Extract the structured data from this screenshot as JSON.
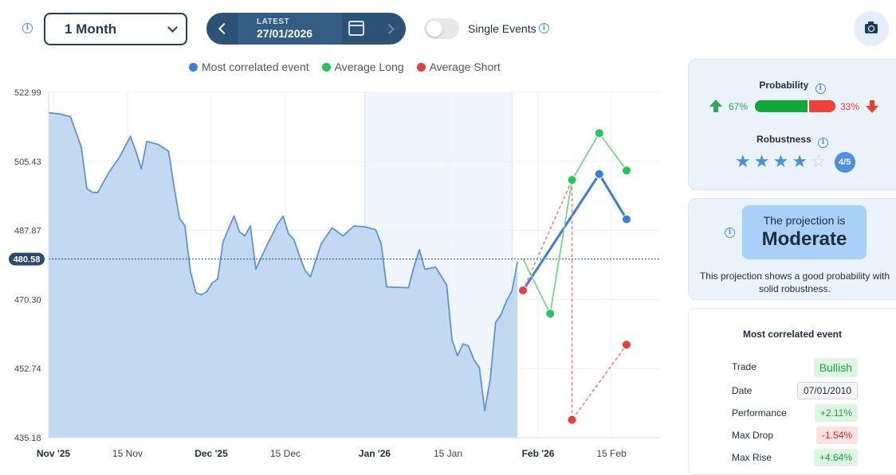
{
  "toolbar": {
    "period": "1 Month",
    "latest_label": "LATEST",
    "latest_date": "27/01/2026",
    "single_events_label": "Single Events",
    "single_events_on": false
  },
  "legend": [
    {
      "label": "Most correlated event",
      "color": "#3b7ddd"
    },
    {
      "label": "Average Long",
      "color": "#22c55e"
    },
    {
      "label": "Average Short",
      "color": "#e53e3e"
    }
  ],
  "chart_data": {
    "type": "line",
    "ylim": [
      435.18,
      522.99
    ],
    "y_ticks": [
      "522.99",
      "505.43",
      "487.87",
      "470.30",
      "452.74",
      "435.18"
    ],
    "x_ticks": [
      {
        "label": "Nov '25",
        "bold": true
      },
      {
        "label": "15 Nov",
        "bold": false
      },
      {
        "label": "Dec '25",
        "bold": true
      },
      {
        "label": "15 Dec",
        "bold": false
      },
      {
        "label": "Jan '26",
        "bold": true
      },
      {
        "label": "15 Jan",
        "bold": false
      },
      {
        "label": "Feb '26",
        "bold": true
      },
      {
        "label": "15 Feb",
        "bold": false
      }
    ],
    "current_value": "480.58",
    "history_x_range": [
      0,
      87
    ],
    "projection_x_range": [
      87,
      112
    ],
    "highlight_range": [
      58,
      85
    ],
    "history": [
      [
        0,
        517.8
      ],
      [
        2,
        517.5
      ],
      [
        4,
        516.8
      ],
      [
        6,
        509.0
      ],
      [
        7,
        498.5
      ],
      [
        8,
        497.6
      ],
      [
        9,
        497.5
      ],
      [
        11,
        502.5
      ],
      [
        13,
        506.5
      ],
      [
        15,
        511.8
      ],
      [
        16,
        508.0
      ],
      [
        17,
        503.5
      ],
      [
        18,
        510.5
      ],
      [
        20,
        509.8
      ],
      [
        22,
        508.0
      ],
      [
        23,
        499.0
      ],
      [
        24,
        491.0
      ],
      [
        25,
        489.0
      ],
      [
        26,
        477.5
      ],
      [
        27,
        472.0
      ],
      [
        28,
        471.5
      ],
      [
        29,
        472.3
      ],
      [
        30,
        474.5
      ],
      [
        31,
        475.5
      ],
      [
        32,
        485.0
      ],
      [
        34,
        491.5
      ],
      [
        35,
        487.5
      ],
      [
        36,
        486.5
      ],
      [
        37,
        489.0
      ],
      [
        38,
        478.0
      ],
      [
        40,
        484.0
      ],
      [
        42,
        489.5
      ],
      [
        43,
        491.5
      ],
      [
        44,
        487.0
      ],
      [
        45,
        485.5
      ],
      [
        46,
        481.5
      ],
      [
        47,
        477.8
      ],
      [
        48,
        476.0
      ],
      [
        50,
        484.5
      ],
      [
        52,
        488.5
      ],
      [
        54,
        486.5
      ],
      [
        56,
        489.0
      ],
      [
        58,
        488.8
      ],
      [
        60,
        488.0
      ],
      [
        61,
        484.5
      ],
      [
        62,
        473.5
      ],
      [
        64,
        473.4
      ],
      [
        66,
        473.3
      ],
      [
        67,
        478.5
      ],
      [
        68,
        483.0
      ],
      [
        69,
        478.0
      ],
      [
        71,
        478.5
      ],
      [
        73,
        474.0
      ],
      [
        74,
        460.0
      ],
      [
        75,
        456.0
      ],
      [
        76,
        459.0
      ],
      [
        77,
        458.5
      ],
      [
        78,
        455.0
      ],
      [
        79,
        453.0
      ],
      [
        80,
        442.0
      ],
      [
        81,
        450.0
      ],
      [
        82,
        464.5
      ],
      [
        83,
        466.5
      ],
      [
        84,
        470.0
      ],
      [
        85,
        472.5
      ],
      [
        86,
        480.0
      ]
    ],
    "series": [
      {
        "name": "Most correlated event",
        "color": "#3b7ddd",
        "points": [
          [
            87,
            472.6
          ],
          [
            101,
            502.2
          ],
          [
            106,
            490.7
          ]
        ]
      },
      {
        "name": "Average Long",
        "color": "#22c55e",
        "points": [
          [
            87,
            480.6
          ],
          [
            92,
            466.7
          ],
          [
            96,
            500.7
          ],
          [
            101,
            512.6
          ],
          [
            106,
            503.1
          ]
        ]
      },
      {
        "name": "Average Short",
        "color": "#e53e3e",
        "points": [
          [
            87,
            472.6
          ],
          [
            96,
            500.7
          ],
          [
            96,
            439.7
          ],
          [
            106,
            458.8
          ]
        ]
      }
    ],
    "dot_points": [
      {
        "series": "Most correlated event",
        "x": 101,
        "y": 502.2
      },
      {
        "series": "Most correlated event",
        "x": 106,
        "y": 490.7
      },
      {
        "series": "Average Long",
        "x": 92,
        "y": 466.7
      },
      {
        "series": "Average Long",
        "x": 96,
        "y": 500.7
      },
      {
        "series": "Average Long",
        "x": 101,
        "y": 512.6
      },
      {
        "series": "Average Long",
        "x": 106,
        "y": 503.1
      },
      {
        "series": "Average Short",
        "x": 87,
        "y": 472.6
      },
      {
        "series": "Average Short",
        "x": 96,
        "y": 439.7
      },
      {
        "series": "Average Short",
        "x": 106,
        "y": 458.8
      }
    ]
  },
  "probability": {
    "title": "Probability",
    "long_pct": 67,
    "long_label": "67%",
    "short_label": "33%",
    "robustness_title": "Robustness",
    "stars_filled": 4,
    "stars_total": 5,
    "score_label": "4/5"
  },
  "projection": {
    "pre": "The projection is",
    "grade": "Moderate",
    "description": "This projection shows a good probability with solid robustness."
  },
  "event": {
    "title": "Most correlated event",
    "rows": [
      {
        "label": "Trade",
        "value": "Bullish",
        "tone": "green"
      },
      {
        "label": "Date",
        "value": "07/01/2010",
        "tone": "gray"
      },
      {
        "label": "Performance",
        "value": "+2.11%",
        "tone": "green"
      },
      {
        "label": "Max Drop",
        "value": "-1.54%",
        "tone": "red"
      },
      {
        "label": "Max Rise",
        "value": "+4.64%",
        "tone": "green"
      }
    ]
  }
}
